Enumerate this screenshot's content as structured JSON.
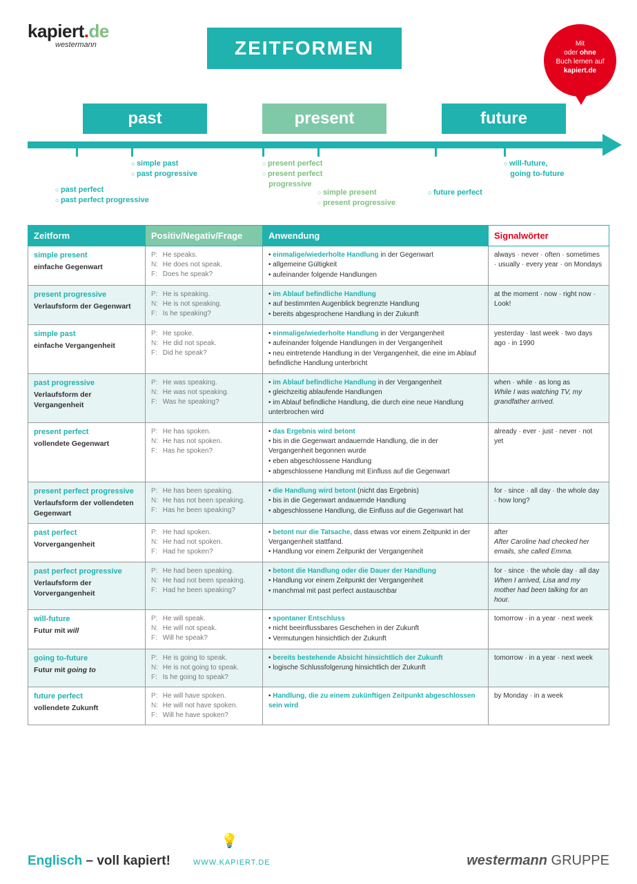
{
  "colors": {
    "teal": "#1fb2af",
    "green": "#7fc9a8",
    "red": "#e2001a",
    "altRow": "#e6f4f3"
  },
  "logo": {
    "brand_main": "kapiert",
    "brand_dot": ".",
    "brand_de": "de",
    "sub": "westermann"
  },
  "title": "ZEITFORMEN",
  "bubble": {
    "l1": "Mit",
    "l2": "oder ohne",
    "l3": "Buch lernen auf",
    "l4": "kapiert.de"
  },
  "timeline": {
    "tabs": {
      "past": "past",
      "present": "present",
      "future": "future"
    },
    "labels": {
      "pastperfect": "past perfect\npast perfect progressive",
      "simplepast": "simple past\npast progressive",
      "presentperfect": "present perfect\npresent perfect\nprogressive",
      "simplepresent": "simple present\npresent progressive",
      "futureperfect": "future perfect",
      "willfuture": "will-future,\ngoing to-future"
    }
  },
  "headers": {
    "c1": "Zeitform",
    "c2": "Positiv/Negativ/Frage",
    "c3": "Anwendung",
    "c4": "Signalwörter"
  },
  "rows": [
    {
      "name": "simple present",
      "de": "einfache Gegenwart",
      "p": "He speaks.",
      "n": "He does not speak.",
      "f": "Does he speak?",
      "usage_head": "einmalige/wiederholte Handlung",
      "usage_head_tail": " in der Gegenwart",
      "usage": [
        "allgemeine Gültigkeit",
        "aufeinander folgende Handlungen"
      ],
      "sig": "always · never · often · sometimes · usually · every year · on Mondays"
    },
    {
      "name": "present progressive",
      "de": "Verlaufsform der Gegenwart",
      "p": "He is speaking.",
      "n": "He is not speaking.",
      "f": "Is he speaking?",
      "usage_head": "im Ablauf befindliche Handlung",
      "usage_head_tail": "",
      "usage": [
        "auf bestimmten Augenblick begrenzte Handlung",
        "bereits abgesprochene Handlung in der Zukunft"
      ],
      "sig": "at the moment · now · right now · Look!"
    },
    {
      "name": "simple past",
      "de": "einfache Vergangenheit",
      "p": "He spoke.",
      "n": "He did not speak.",
      "f": "Did he speak?",
      "usage_head": "einmalige/wiederholte Handlung",
      "usage_head_tail": " in der Vergangenheit",
      "usage": [
        "aufeinander folgende Handlungen in der Vergangenheit",
        "neu eintretende Handlung in der Vergangenheit, die eine im Ablauf befindliche Handlung unterbricht"
      ],
      "sig": "yesterday · last week · two days ago · in 1990"
    },
    {
      "name": "past progressive",
      "de": "Verlaufsform der Vergangenheit",
      "p": "He was speaking.",
      "n": "He was not speaking.",
      "f": "Was he speaking?",
      "usage_head": "im Ablauf befindliche Handlung",
      "usage_head_tail": " in der Vergangenheit",
      "usage": [
        "gleichzeitig ablaufende Handlungen",
        "im Ablauf befindliche Handlung, die durch eine neue Handlung unterbrochen wird"
      ],
      "sig": "when · while · as long as",
      "sig_ex": "While I was watching TV, my grandfather arrived."
    },
    {
      "name": "present perfect",
      "de": "vollendete Gegenwart",
      "p": "He has spoken.",
      "n": "He has not spoken.",
      "f": "Has he spoken?",
      "usage_head": "das Ergebnis wird betont",
      "usage_head_tail": "",
      "usage": [
        "bis in die Gegenwart andauernde Handlung, die in der Vergangenheit begonnen wurde",
        "eben abgeschlossene Handlung",
        "abgeschlossene Handlung mit Einfluss auf die Gegenwart"
      ],
      "sig": "already · ever · just · never · not yet"
    },
    {
      "name": "present perfect progressive",
      "de": "Verlaufsform der vollendeten Gegenwart",
      "p": "He has been speaking.",
      "n": "He has not been speaking.",
      "f": "Has he been speaking?",
      "usage_head": "die Handlung wird betont",
      "usage_head_tail": " (nicht das Ergebnis)",
      "usage": [
        "bis in die Gegenwart andauernde Handlung",
        "abgeschlossene Handlung, die Einfluss auf die Gegenwart hat"
      ],
      "sig": "for · since · all day · the whole day · how long?"
    },
    {
      "name": "past perfect",
      "de": "Vorvergangenheit",
      "p": "He had spoken.",
      "n": "He had not spoken.",
      "f": "Had he spoken?",
      "usage_head": "betont nur die Tatsache,",
      "usage_head_tail": " dass etwas vor einem Zeitpunkt in der Vergangenheit stattfand.",
      "usage": [
        "Handlung vor einem Zeitpunkt der Vergangenheit"
      ],
      "sig": "after",
      "sig_ex": "After Caroline had checked her emails, she called Emma."
    },
    {
      "name": "past perfect progressive",
      "de": "Verlaufsform der Vorvergangenheit",
      "p": "He had been speaking.",
      "n": "He had not been speaking.",
      "f": "Had he been speaking?",
      "usage_head": "betont die Handlung oder die Dauer der Handlung",
      "usage_head_tail": "",
      "usage": [
        "Handlung vor einem Zeitpunkt der Vergangenheit",
        "manchmal mit past perfect austauschbar"
      ],
      "sig": "for · since · the whole day · all day",
      "sig_ex": "When I arrived, Lisa and my mother had been talking for an hour."
    },
    {
      "name": "will-future",
      "de": "Futur mit will",
      "de_ital": "will",
      "p": "He will speak.",
      "n": "He will not speak.",
      "f": "Will he speak?",
      "usage_head": "spontaner Entschluss",
      "usage_head_tail": "",
      "usage": [
        "nicht beeinflussbares Geschehen in der Zukunft",
        "Vermutungen hinsichtlich der Zukunft"
      ],
      "sig": "tomorrow · in a year · next week"
    },
    {
      "name": "going to-future",
      "de": "Futur mit going to",
      "de_ital": "going to",
      "p": "He is going to speak.",
      "n": "He is not going to speak.",
      "f": "Is he going to speak?",
      "usage_head": "bereits bestehende Absicht hinsichtlich der Zukunft",
      "usage_head_tail": "",
      "usage": [
        "logische Schlussfolgerung hinsichtlich der Zukunft"
      ],
      "sig": "tomorrow · in a year · next week"
    },
    {
      "name": "future perfect",
      "de": "vollendete Zukunft",
      "p": "He will have spoken.",
      "n": "He will not have spoken.",
      "f": "Will he have spoken?",
      "usage_head": "Handlung, die zu einem zukünftigen Zeitpunkt abgeschlossen sein wird",
      "usage_head_tail": "",
      "usage": [],
      "sig": "by Monday · in a week"
    }
  ],
  "footer": {
    "left_teal": "Englisch",
    "left_dash": " – ",
    "left_rest": "voll kapiert!",
    "url": "WWW.KAPIERT.DE",
    "right_bold": "westermann",
    "right_rest": " GRUPPE"
  }
}
